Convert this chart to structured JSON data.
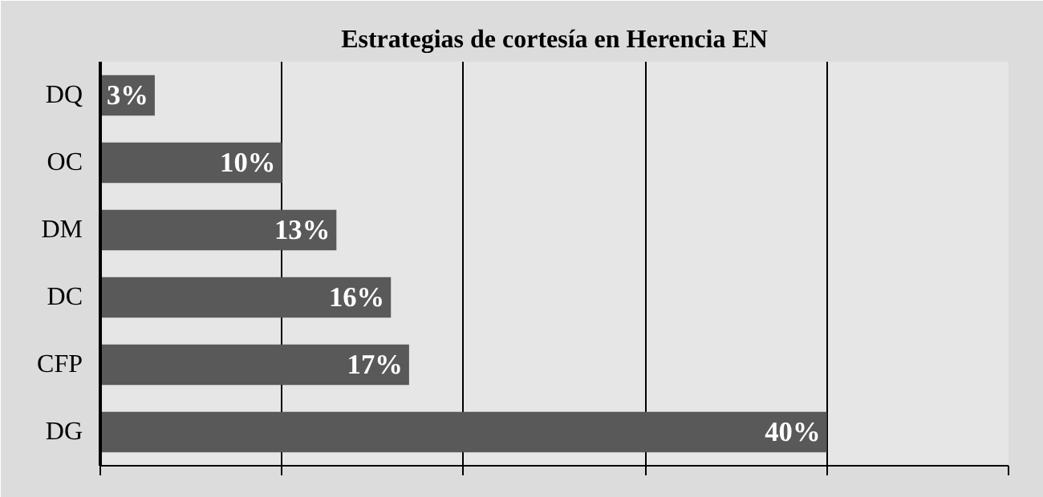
{
  "chart_data": {
    "type": "bar",
    "orientation": "horizontal",
    "title": "Estrategias de cortesía en Herencia EN",
    "categories": [
      "DQ",
      "OC",
      "DM",
      "DC",
      "CFP",
      "DG"
    ],
    "values": [
      3,
      10,
      13,
      16,
      17,
      40
    ],
    "value_labels": [
      "3%",
      "10%",
      "13%",
      "16%",
      "17%",
      "40%"
    ],
    "color": "#595959",
    "xlim": [
      0,
      50
    ],
    "xticks": [
      {
        "value": 0,
        "label": null
      },
      {
        "value": 10,
        "label": null
      },
      {
        "value": 20,
        "label": null
      },
      {
        "value": 30,
        "label": null
      },
      {
        "value": 40,
        "label": null
      },
      {
        "value": 50,
        "label": null
      }
    ],
    "tick_labels": "y",
    "grid": "x"
  }
}
